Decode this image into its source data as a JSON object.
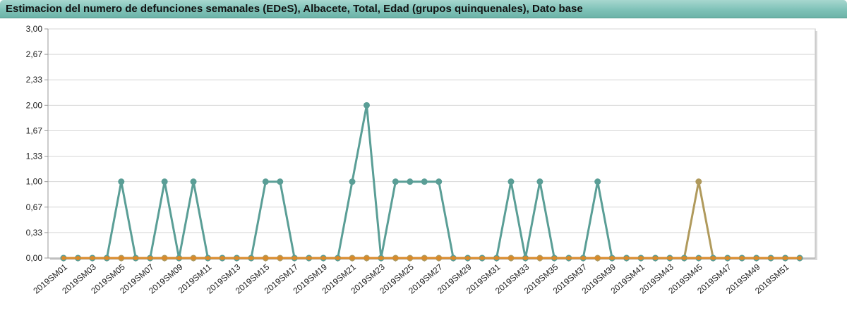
{
  "title": "Estimacion del numero de defunciones semanales (EDeS), Albacete, Total, Edad (grupos quinquenales), Dato base",
  "chart_data": {
    "type": "line",
    "title": "Estimacion del numero de defunciones semanales (EDeS), Albacete, Total, Edad (grupos quinquenales), Dato base",
    "xlabel": "",
    "ylabel": "",
    "ylim": [
      0,
      3
    ],
    "y_tick_labels": [
      "0,00",
      "0,33",
      "0,67",
      "1,00",
      "1,33",
      "1,67",
      "2,00",
      "2,33",
      "2,67",
      "3,00"
    ],
    "x": [
      "2019SM01",
      "2019SM02",
      "2019SM03",
      "2019SM04",
      "2019SM05",
      "2019SM06",
      "2019SM07",
      "2019SM08",
      "2019SM09",
      "2019SM10",
      "2019SM11",
      "2019SM12",
      "2019SM13",
      "2019SM14",
      "2019SM15",
      "2019SM16",
      "2019SM17",
      "2019SM18",
      "2019SM19",
      "2019SM20",
      "2019SM21",
      "2019SM22",
      "2019SM23",
      "2019SM24",
      "2019SM25",
      "2019SM26",
      "2019SM27",
      "2019SM28",
      "2019SM29",
      "2019SM30",
      "2019SM31",
      "2019SM32",
      "2019SM33",
      "2019SM34",
      "2019SM35",
      "2019SM36",
      "2019SM37",
      "2019SM38",
      "2019SM39",
      "2019SM40",
      "2019SM41",
      "2019SM42",
      "2019SM43",
      "2019SM44",
      "2019SM45",
      "2019SM46",
      "2019SM47",
      "2019SM48",
      "2019SM49",
      "2019SM50",
      "2019SM51",
      "2019SM52"
    ],
    "x_tick_labels": [
      "2019SM01",
      "2019SM03",
      "2019SM05",
      "2019SM07",
      "2019SM09",
      "2019SM11",
      "2019SM13",
      "2019SM15",
      "2019SM17",
      "2019SM19",
      "2019SM21",
      "2019SM23",
      "2019SM25",
      "2019SM27",
      "2019SM29",
      "2019SM31",
      "2019SM33",
      "2019SM35",
      "2019SM37",
      "2019SM39",
      "2019SM41",
      "2019SM43",
      "2019SM45",
      "2019SM47",
      "2019SM49",
      "2019SM51"
    ],
    "grid": true,
    "legend": "none",
    "series": [
      {
        "color": "#5a9e96",
        "values": [
          0,
          0,
          0,
          0,
          1,
          0,
          0,
          1,
          0,
          1,
          0,
          0,
          0,
          0,
          1,
          1,
          0,
          0,
          0,
          0,
          1,
          2,
          0,
          1,
          1,
          1,
          1,
          0,
          0,
          0,
          0,
          1,
          0,
          1,
          0,
          0,
          0,
          1,
          0,
          0,
          0,
          0,
          0,
          0,
          0,
          0,
          0,
          0,
          0,
          0,
          0,
          0
        ]
      },
      {
        "color": "#b09a5c",
        "values": [
          0,
          0,
          0,
          0,
          0,
          0,
          0,
          0,
          0,
          0,
          0,
          0,
          0,
          0,
          0,
          0,
          0,
          0,
          0,
          0,
          0,
          0,
          0,
          0,
          0,
          0,
          0,
          0,
          0,
          0,
          0,
          0,
          0,
          0,
          0,
          0,
          0,
          0,
          0,
          0,
          0,
          0,
          0,
          0,
          1,
          0,
          0,
          0,
          0,
          0,
          0,
          0
        ]
      },
      {
        "color": "#d98a2a",
        "values": [
          0,
          0,
          0,
          0,
          0,
          0,
          0,
          0,
          0,
          0,
          0,
          0,
          0,
          0,
          0,
          0,
          0,
          0,
          0,
          0,
          0,
          0,
          0,
          0,
          0,
          0,
          0,
          0,
          0,
          0,
          0,
          0,
          0,
          0,
          0,
          0,
          0,
          0,
          0,
          0,
          0,
          0,
          0,
          0,
          0,
          0,
          0,
          0,
          0,
          0,
          0,
          0
        ]
      }
    ]
  }
}
